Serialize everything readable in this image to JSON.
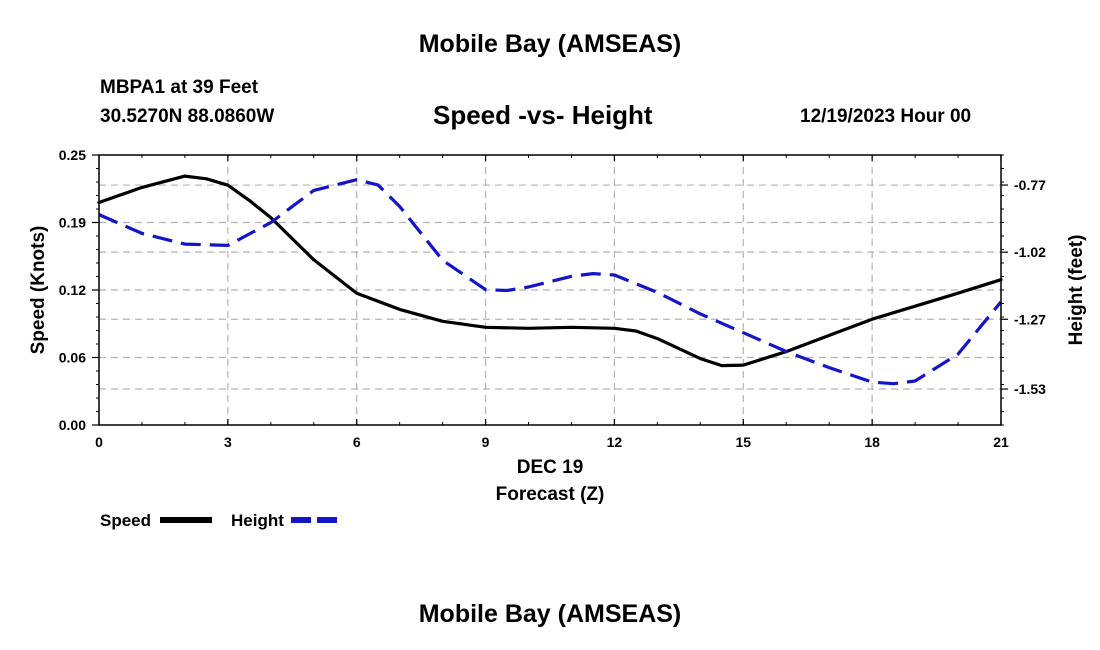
{
  "page": {
    "main_title": "Mobile Bay (AMSEAS)",
    "station_name": "MBPA1 at 39 Feet",
    "station_coords": "30.5270N  88.0860W",
    "date_label": "12/19/2023 Hour 00",
    "footer_title": "Mobile Bay (AMSEAS)"
  },
  "chart_data": {
    "type": "line",
    "title": "Speed -vs- Height",
    "xlabel": "Forecast (Z)",
    "xlabel_date": "DEC 19",
    "ylabel": "Speed (Knots)",
    "y2label": "Height (feet)",
    "xlim": [
      0,
      21
    ],
    "ylim": [
      0,
      0.25
    ],
    "y2lim": [
      -1.664,
      -0.658
    ],
    "x_ticks": [
      0,
      3,
      6,
      9,
      12,
      15,
      18,
      21
    ],
    "y_ticks": [
      "0.00",
      "0.06",
      "0.12",
      "0.19",
      "0.25"
    ],
    "y_tick_values": [
      0,
      0.0625,
      0.125,
      0.1875,
      0.25
    ],
    "y2_ticks": [
      "-0.77",
      "-1.02",
      "-1.27",
      "-1.53"
    ],
    "y2_tick_values": [
      -0.77,
      -1.02,
      -1.27,
      -1.53
    ],
    "grid": true,
    "legend_position": "bottom-left",
    "colors": {
      "speed": "#000000",
      "height": "#1414c8",
      "grid": "#b4b4b4"
    },
    "series": [
      {
        "name": "Speed",
        "axis": "left",
        "style": "solid",
        "x": [
          0,
          1,
          2,
          2.5,
          3,
          3.5,
          4,
          5,
          6,
          7,
          8,
          9,
          10,
          11,
          12,
          12.5,
          13,
          14,
          14.5,
          15,
          16,
          17,
          18,
          19,
          20,
          21
        ],
        "values": [
          0.206,
          0.22,
          0.2305,
          0.228,
          0.222,
          0.208,
          0.192,
          0.153,
          0.122,
          0.107,
          0.096,
          0.0905,
          0.0895,
          0.0905,
          0.0895,
          0.087,
          0.08,
          0.0615,
          0.055,
          0.0555,
          0.068,
          0.083,
          0.098,
          0.11,
          0.122,
          0.1345
        ]
      },
      {
        "name": "Height",
        "axis": "right",
        "style": "dashed",
        "x": [
          0,
          1,
          2,
          3,
          4,
          5,
          6,
          6.5,
          7,
          8,
          9,
          9.5,
          10,
          11,
          11.5,
          12,
          13,
          14,
          15,
          16,
          17,
          18,
          18.5,
          19,
          20,
          21
        ],
        "values": [
          -0.88,
          -0.95,
          -0.99,
          -0.995,
          -0.91,
          -0.79,
          -0.75,
          -0.77,
          -0.85,
          -1.05,
          -1.16,
          -1.163,
          -1.15,
          -1.11,
          -1.1,
          -1.105,
          -1.17,
          -1.25,
          -1.32,
          -1.39,
          -1.45,
          -1.504,
          -1.51,
          -1.5,
          -1.4,
          -1.205
        ]
      }
    ]
  }
}
